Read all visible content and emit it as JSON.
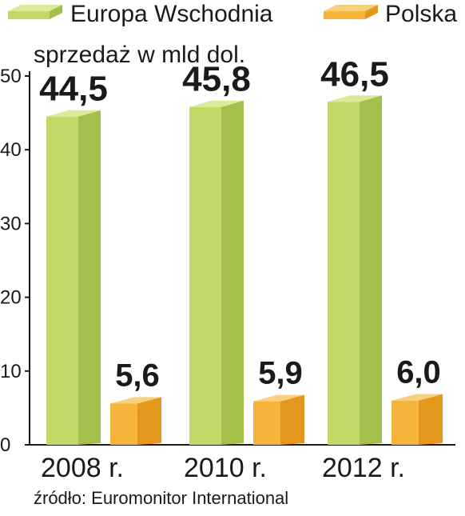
{
  "chart_data": {
    "type": "bar",
    "categories": [
      "2008 r.",
      "2010 r.",
      "2012 r."
    ],
    "series": [
      {
        "name": "Europa Wschodnia",
        "values": [
          44.5,
          45.8,
          46.5
        ],
        "labels": [
          "44,5",
          "45,8",
          "46,5"
        ],
        "color_front": "#c2d96a",
        "color_side": "#a3c04a",
        "color_top": "#dbe99a"
      },
      {
        "name": "Polska",
        "values": [
          5.6,
          5.9,
          6.0
        ],
        "labels": [
          "5,6",
          "5,9",
          "6,0"
        ],
        "color_front": "#f5b43a",
        "color_side": "#e3981d",
        "color_top": "#f9d07e"
      }
    ],
    "subtitle": "sprzedaż w mld dol.",
    "y_ticks": [
      "0",
      "10",
      "20",
      "30",
      "40",
      "50"
    ],
    "ylim": [
      0,
      50
    ],
    "grid": false,
    "legend_position": "top",
    "source": "źródło: Euromonitor International"
  }
}
